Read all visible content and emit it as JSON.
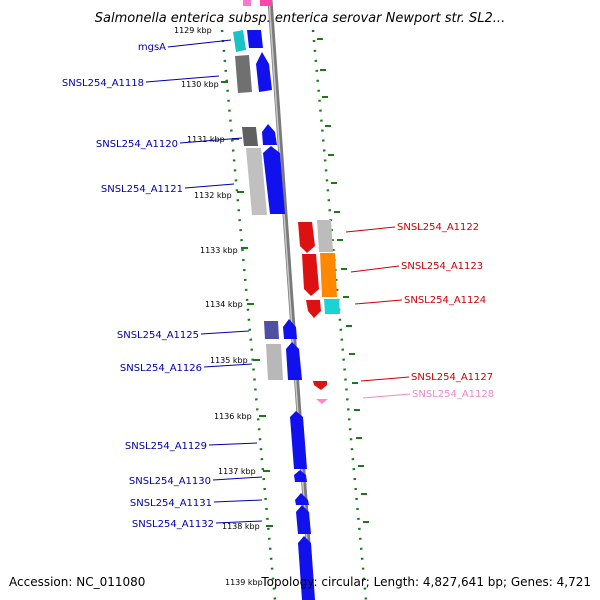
{
  "title": "Salmonella enterica subsp. enterica serovar Newport str. SL2...",
  "footer": {
    "accession": "Accession: NC_011080",
    "topology": "Topology: circular; Length: 4,827,641 bp; Genes: 4,721"
  },
  "ticks": [
    "1129 kbp",
    "1130 kbp",
    "1131 kbp",
    "1132 kbp",
    "1133 kbp",
    "1134 kbp",
    "1135 kbp",
    "1136 kbp",
    "1137 kbp",
    "1138 kbp",
    "1139 kbp"
  ],
  "colors": {
    "backbone": "#8c8c8c",
    "ruler": "#1a7a1a",
    "label_forward": "#0000aa",
    "label_reverse": "#cc0000",
    "label_faded": "#ee88cc"
  },
  "left_labels": [
    "mgsA",
    "SNSL254_A1118",
    "SNSL254_A1120",
    "SNSL254_A1121",
    "SNSL254_A1125",
    "SNSL254_A1126",
    "SNSL254_A1129",
    "SNSL254_A1130",
    "SNSL254_A1131",
    "SNSL254_A1132"
  ],
  "right_labels": [
    "SNSL254_A1122",
    "SNSL254_A1123",
    "SNSL254_A1124",
    "SNSL254_A1127",
    "SNSL254_A1128"
  ]
}
